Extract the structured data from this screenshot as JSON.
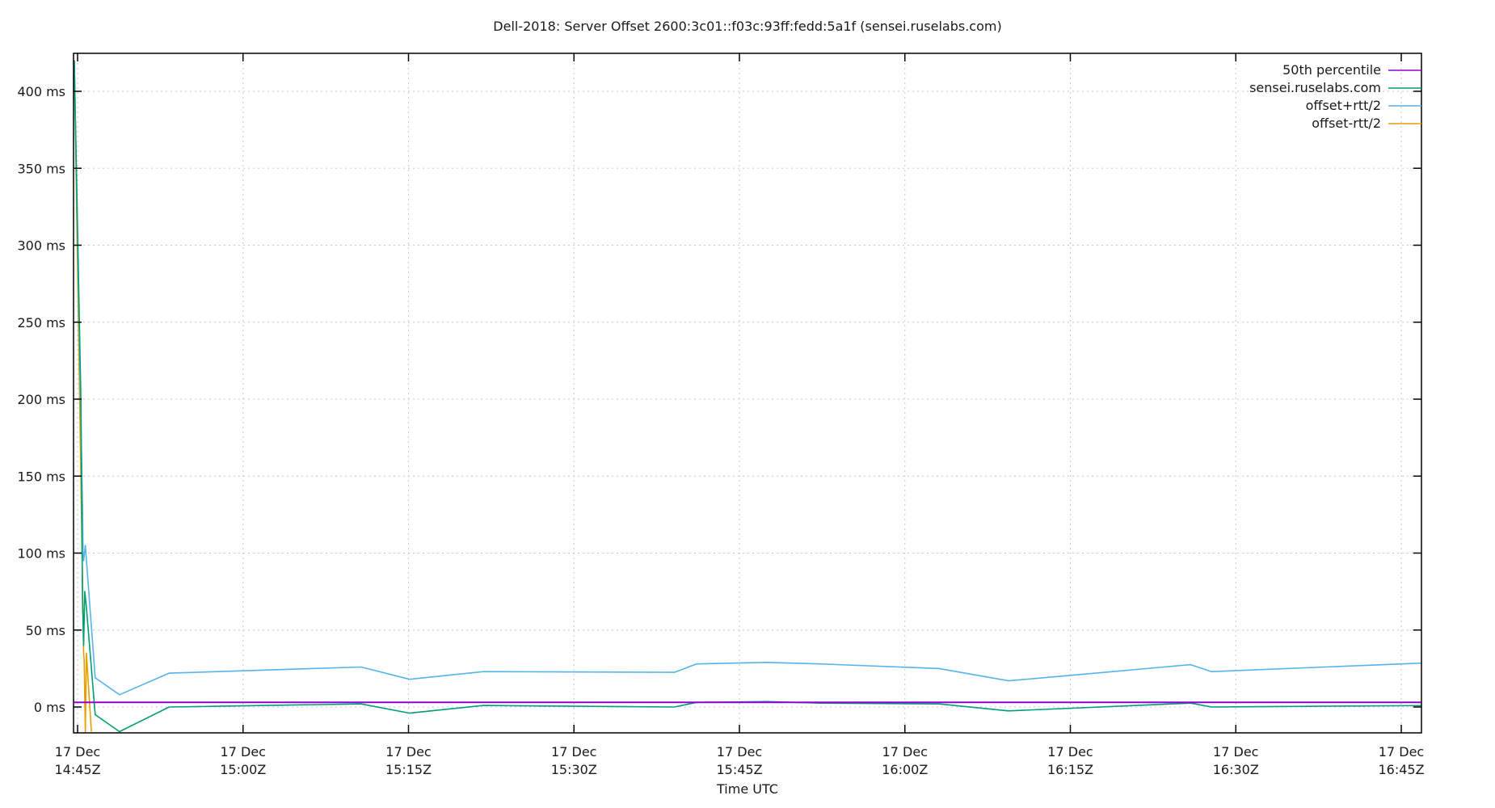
{
  "chart_data": {
    "type": "line",
    "title": "Dell-2018: Server Offset 2600:3c01::f03c:93ff:fedd:5a1f (sensei.ruselabs.com)",
    "xlabel": "Time UTC",
    "ylabel": "",
    "ylim": [
      -16,
      423
    ],
    "y_ticks": [
      "0 ms",
      "50 ms",
      "100 ms",
      "150 ms",
      "200 ms",
      "250 ms",
      "300 ms",
      "350 ms",
      "400 ms"
    ],
    "y_tick_values": [
      0,
      50,
      100,
      150,
      200,
      250,
      300,
      350,
      400
    ],
    "x_ticks": [
      {
        "date": "17 Dec",
        "time": "14:45Z"
      },
      {
        "date": "17 Dec",
        "time": "15:00Z"
      },
      {
        "date": "17 Dec",
        "time": "15:15Z"
      },
      {
        "date": "17 Dec",
        "time": "15:30Z"
      },
      {
        "date": "17 Dec",
        "time": "15:45Z"
      },
      {
        "date": "17 Dec",
        "time": "16:00Z"
      },
      {
        "date": "17 Dec",
        "time": "16:15Z"
      },
      {
        "date": "17 Dec",
        "time": "16:30Z"
      },
      {
        "date": "17 Dec",
        "time": "16:45Z"
      }
    ],
    "grid": true,
    "legend_position": "top-right",
    "x_unit": "minutes since 14:45Z",
    "series": [
      {
        "name": "50th percentile",
        "color": "#9400d3",
        "x": [
          -0.3,
          123.4
        ],
        "values": [
          3,
          3
        ]
      },
      {
        "name": "sensei.ruselabs.com",
        "color": "#009e73",
        "x": [
          -0.3,
          0.3,
          0.45,
          0.55,
          0.65,
          0.8,
          1.6,
          3.8,
          8.3,
          25.7,
          30.1,
          36.8,
          54.1,
          56.1,
          62.5,
          67.3,
          78.1,
          84.4,
          100.9,
          102.8,
          123.4
        ],
        "values": [
          420,
          200,
          70,
          40,
          75,
          65,
          -5,
          -16,
          0,
          2,
          -4,
          1,
          0,
          3,
          3.5,
          2.5,
          2,
          -2.5,
          2.5,
          0,
          1
        ]
      },
      {
        "name": "offset+rtt/2",
        "color": "#56b4e9",
        "x": [
          -0.3,
          0.45,
          0.5,
          0.55,
          0.7,
          1.6,
          3.8,
          8.3,
          25.7,
          30.1,
          36.8,
          54.1,
          56.1,
          62.5,
          67.3,
          78.1,
          84.4,
          100.9,
          102.8,
          123.4
        ],
        "values": [
          420,
          130,
          100,
          95,
          105,
          19,
          8,
          22,
          26,
          18,
          23,
          22.5,
          28,
          29,
          28,
          25,
          17,
          27.5,
          23,
          29
        ]
      },
      {
        "name": "offset-rtt/2",
        "color": "#e69f00",
        "x": [
          -0.3,
          0.55,
          0.6,
          0.7,
          0.8,
          1.25
        ],
        "values": [
          420,
          35,
          30,
          -16,
          35,
          -16
        ]
      }
    ]
  },
  "legend": [
    {
      "label": "50th percentile",
      "color": "#9400d3"
    },
    {
      "label": "sensei.ruselabs.com",
      "color": "#009e73"
    },
    {
      "label": "offset+rtt/2",
      "color": "#56b4e9"
    },
    {
      "label": "offset-rtt/2",
      "color": "#e69f00"
    }
  ]
}
